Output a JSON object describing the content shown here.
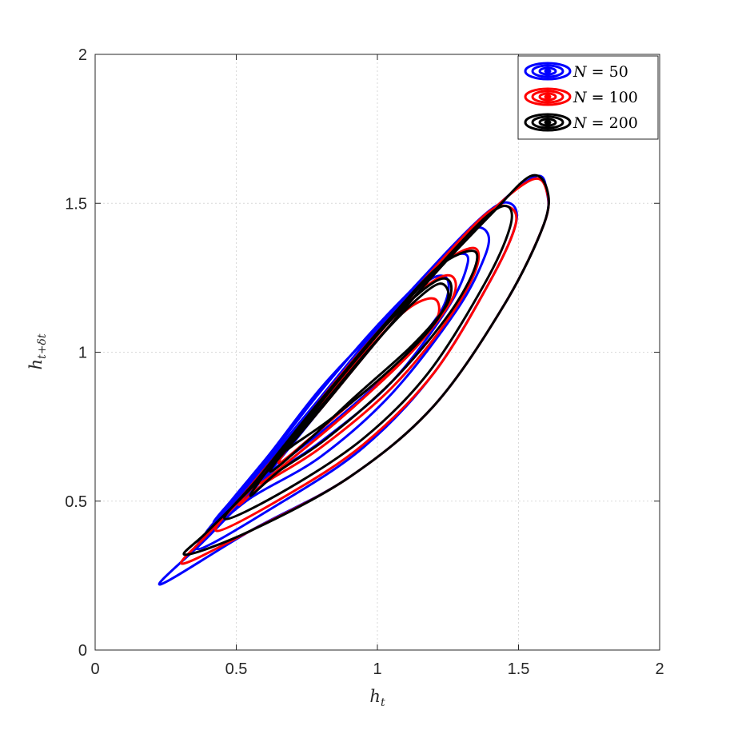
{
  "chart_data": {
    "type": "contour",
    "title": "",
    "xlabel": {
      "base": "h",
      "sub": "t"
    },
    "ylabel": {
      "base": "h",
      "sub": "t+δt"
    },
    "xlim": [
      0,
      2
    ],
    "ylim": [
      0,
      2
    ],
    "xticks": [
      "0",
      "0.5",
      "1",
      "1.5",
      "2"
    ],
    "yticks": [
      "0",
      "0.5",
      "1",
      "1.5",
      "2"
    ],
    "grid": true,
    "legend_position": "top-right",
    "series": [
      {
        "name": "N = 50",
        "label_var": "N",
        "label_value": " = 50",
        "color": "#0000ff",
        "contours": [
          [
            [
              0.23,
              0.22
            ],
            [
              0.4,
              0.38
            ],
            [
              0.6,
              0.58
            ],
            [
              0.8,
              0.81
            ],
            [
              1.0,
              1.04
            ],
            [
              1.2,
              1.26
            ],
            [
              1.4,
              1.47
            ],
            [
              1.56,
              1.59
            ],
            [
              1.6,
              1.54
            ],
            [
              1.59,
              1.43
            ],
            [
              1.45,
              1.16
            ],
            [
              1.2,
              0.82
            ],
            [
              0.9,
              0.58
            ],
            [
              0.55,
              0.4
            ],
            [
              0.23,
              0.22
            ]
          ],
          [
            [
              0.36,
              0.34
            ],
            [
              0.55,
              0.56
            ],
            [
              0.8,
              0.84
            ],
            [
              1.0,
              1.07
            ],
            [
              1.2,
              1.29
            ],
            [
              1.39,
              1.47
            ],
            [
              1.47,
              1.5
            ],
            [
              1.49,
              1.43
            ],
            [
              1.4,
              1.24
            ],
            [
              1.2,
              0.93
            ],
            [
              0.95,
              0.68
            ],
            [
              0.65,
              0.49
            ],
            [
              0.36,
              0.34
            ]
          ],
          [
            [
              0.39,
              0.39
            ],
            [
              0.58,
              0.6
            ],
            [
              0.8,
              0.85
            ],
            [
              1.0,
              1.08
            ],
            [
              1.2,
              1.29
            ],
            [
              1.33,
              1.41
            ],
            [
              1.39,
              1.4
            ],
            [
              1.38,
              1.32
            ],
            [
              1.28,
              1.14
            ],
            [
              1.05,
              0.86
            ],
            [
              0.8,
              0.65
            ],
            [
              0.55,
              0.51
            ],
            [
              0.39,
              0.39
            ]
          ],
          [
            [
              0.42,
              0.43
            ],
            [
              0.6,
              0.63
            ],
            [
              0.8,
              0.87
            ],
            [
              1.0,
              1.09
            ],
            [
              1.2,
              1.28
            ],
            [
              1.29,
              1.33
            ],
            [
              1.32,
              1.3
            ],
            [
              1.25,
              1.15
            ],
            [
              1.05,
              0.9
            ],
            [
              0.8,
              0.7
            ],
            [
              0.58,
              0.56
            ],
            [
              0.42,
              0.43
            ]
          ],
          [
            [
              0.46,
              0.47
            ],
            [
              0.62,
              0.66
            ],
            [
              0.8,
              0.88
            ],
            [
              1.0,
              1.08
            ],
            [
              1.18,
              1.24
            ],
            [
              1.25,
              1.24
            ],
            [
              1.22,
              1.13
            ],
            [
              1.05,
              0.94
            ],
            [
              0.85,
              0.77
            ],
            [
              0.65,
              0.62
            ],
            [
              0.46,
              0.47
            ]
          ]
        ]
      },
      {
        "name": "N = 100",
        "label_var": "N",
        "label_value": " = 100",
        "color": "#ff0000",
        "contours": [
          [
            [
              0.31,
              0.29
            ],
            [
              0.4,
              0.39
            ],
            [
              0.6,
              0.59
            ],
            [
              0.8,
              0.81
            ],
            [
              1.0,
              1.04
            ],
            [
              1.2,
              1.26
            ],
            [
              1.4,
              1.47
            ],
            [
              1.55,
              1.58
            ],
            [
              1.6,
              1.54
            ],
            [
              1.59,
              1.43
            ],
            [
              1.45,
              1.16
            ],
            [
              1.2,
              0.82
            ],
            [
              0.9,
              0.58
            ],
            [
              0.55,
              0.4
            ],
            [
              0.31,
              0.29
            ]
          ],
          [
            [
              0.43,
              0.4
            ],
            [
              0.55,
              0.55
            ],
            [
              0.8,
              0.83
            ],
            [
              1.0,
              1.06
            ],
            [
              1.2,
              1.28
            ],
            [
              1.38,
              1.46
            ],
            [
              1.46,
              1.49
            ],
            [
              1.49,
              1.43
            ],
            [
              1.4,
              1.24
            ],
            [
              1.2,
              0.93
            ],
            [
              0.95,
              0.69
            ],
            [
              0.68,
              0.52
            ],
            [
              0.43,
              0.4
            ]
          ],
          [
            [
              0.51,
              0.49
            ],
            [
              0.65,
              0.66
            ],
            [
              0.85,
              0.9
            ],
            [
              1.05,
              1.12
            ],
            [
              1.22,
              1.29
            ],
            [
              1.34,
              1.35
            ],
            [
              1.35,
              1.28
            ],
            [
              1.25,
              1.11
            ],
            [
              1.05,
              0.88
            ],
            [
              0.8,
              0.68
            ],
            [
              0.6,
              0.56
            ],
            [
              0.51,
              0.49
            ]
          ],
          [
            [
              0.58,
              0.56
            ],
            [
              0.7,
              0.71
            ],
            [
              0.88,
              0.92
            ],
            [
              1.05,
              1.11
            ],
            [
              1.2,
              1.24
            ],
            [
              1.27,
              1.25
            ],
            [
              1.26,
              1.17
            ],
            [
              1.12,
              1.0
            ],
            [
              0.92,
              0.82
            ],
            [
              0.72,
              0.66
            ],
            [
              0.58,
              0.56
            ]
          ],
          [
            [
              0.65,
              0.63
            ],
            [
              0.78,
              0.8
            ],
            [
              0.95,
              0.99
            ],
            [
              1.1,
              1.14
            ],
            [
              1.2,
              1.18
            ],
            [
              1.21,
              1.11
            ],
            [
              1.1,
              0.98
            ],
            [
              0.92,
              0.84
            ],
            [
              0.76,
              0.71
            ],
            [
              0.65,
              0.63
            ]
          ]
        ]
      },
      {
        "name": "N = 200",
        "label_var": "N",
        "label_value": " = 200",
        "color": "#000000",
        "contours": [
          [
            [
              0.32,
              0.32
            ],
            [
              0.4,
              0.4
            ],
            [
              0.6,
              0.59
            ],
            [
              0.8,
              0.81
            ],
            [
              1.0,
              1.04
            ],
            [
              1.2,
              1.26
            ],
            [
              1.4,
              1.46
            ],
            [
              1.54,
              1.59
            ],
            [
              1.6,
              1.55
            ],
            [
              1.59,
              1.43
            ],
            [
              1.45,
              1.16
            ],
            [
              1.2,
              0.82
            ],
            [
              0.9,
              0.58
            ],
            [
              0.55,
              0.4
            ],
            [
              0.32,
              0.32
            ]
          ],
          [
            [
              0.46,
              0.44
            ],
            [
              0.58,
              0.58
            ],
            [
              0.8,
              0.84
            ],
            [
              1.0,
              1.06
            ],
            [
              1.2,
              1.27
            ],
            [
              1.38,
              1.45
            ],
            [
              1.46,
              1.49
            ],
            [
              1.47,
              1.42
            ],
            [
              1.38,
              1.23
            ],
            [
              1.18,
              0.93
            ],
            [
              0.95,
              0.71
            ],
            [
              0.68,
              0.54
            ],
            [
              0.46,
              0.44
            ]
          ],
          [
            [
              0.55,
              0.52
            ],
            [
              0.68,
              0.69
            ],
            [
              0.88,
              0.93
            ],
            [
              1.05,
              1.12
            ],
            [
              1.22,
              1.29
            ],
            [
              1.34,
              1.34
            ],
            [
              1.34,
              1.27
            ],
            [
              1.24,
              1.11
            ],
            [
              1.05,
              0.9
            ],
            [
              0.82,
              0.71
            ],
            [
              0.65,
              0.6
            ],
            [
              0.55,
              0.52
            ]
          ],
          [
            [
              0.62,
              0.6
            ],
            [
              0.75,
              0.77
            ],
            [
              0.92,
              0.97
            ],
            [
              1.08,
              1.14
            ],
            [
              1.21,
              1.24
            ],
            [
              1.26,
              1.23
            ],
            [
              1.24,
              1.15
            ],
            [
              1.12,
              1.02
            ],
            [
              0.92,
              0.85
            ],
            [
              0.75,
              0.7
            ],
            [
              0.62,
              0.6
            ]
          ],
          [
            [
              0.68,
              0.68
            ],
            [
              0.82,
              0.84
            ],
            [
              0.98,
              1.02
            ],
            [
              1.12,
              1.16
            ],
            [
              1.22,
              1.23
            ],
            [
              1.25,
              1.18
            ],
            [
              1.18,
              1.07
            ],
            [
              1.02,
              0.92
            ],
            [
              0.84,
              0.78
            ],
            [
              0.72,
              0.7
            ],
            [
              0.68,
              0.68
            ]
          ]
        ]
      }
    ]
  }
}
